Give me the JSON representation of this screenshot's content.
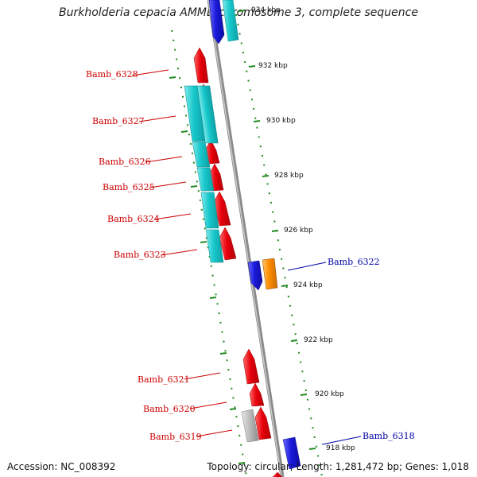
{
  "title": "Burkholderia cepacia AMMD chromosome 3, complete sequence",
  "footer": {
    "accession": "Accession: NC_008392",
    "topology": "Topology: circular; Length: 1,281,472 bp; Genes: 1,018"
  },
  "colors": {
    "left_labels": "#cc0000",
    "right_labels": "#0000aa",
    "tick_marks": "#228b22",
    "backbone": "#8a8a8a",
    "gene_red": "#e8000b",
    "gene_cyan": "#17c8cc",
    "gene_blue": "#1a1adc",
    "gene_orange": "#ff8c00",
    "gene_grey": "#bdbdbd"
  },
  "ticks": [
    "934 kbp",
    "932 kbp",
    "930 kbp",
    "928 kbp",
    "926 kbp",
    "924 kbp",
    "922 kbp",
    "920 kbp",
    "918 kbp"
  ],
  "gene_labels": {
    "left": [
      "Bamb_6328",
      "Bamb_6327",
      "Bamb_6326",
      "Bamb_6325",
      "Bamb_6324",
      "Bamb_6323",
      "Bamb_6321",
      "Bamb_6320",
      "Bamb_6319"
    ],
    "right": [
      "Bamb_6322",
      "Bamb_6318"
    ]
  }
}
